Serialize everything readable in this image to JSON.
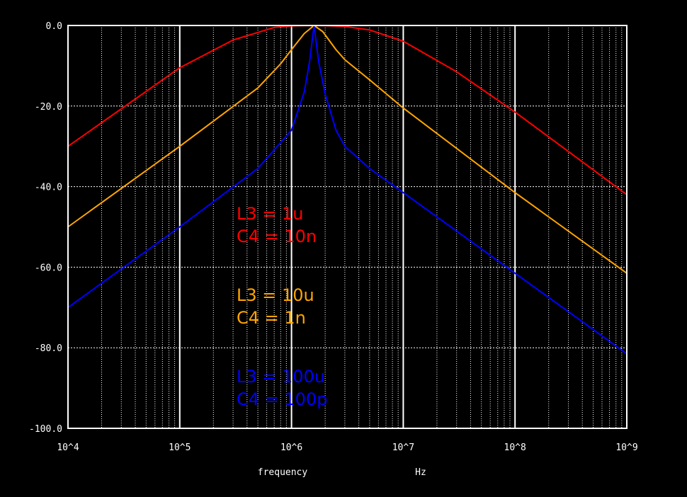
{
  "chart_data": {
    "type": "line",
    "title": "",
    "xlabel": "frequency",
    "xunit": "Hz",
    "ylabel": "",
    "xscale": "log",
    "xlim": [
      10000,
      1000000000
    ],
    "ylim": [
      -100,
      0
    ],
    "grid": true,
    "x_ticks": [
      10000,
      100000,
      1000000,
      10000000,
      100000000,
      1000000000
    ],
    "x_tick_labels": [
      "10^4",
      "10^5",
      "10^6",
      "10^7",
      "10^8",
      "10^9"
    ],
    "y_ticks": [
      0,
      -20,
      -40,
      -60,
      -80,
      -100
    ],
    "y_tick_labels": [
      "0.0",
      "-20.0",
      "-40.0",
      "-60.0",
      "-80.0",
      "-100.0"
    ],
    "series": [
      {
        "color": "#ff0000",
        "x": [
          10000,
          100000,
          300000,
          700000,
          1000000,
          1200000,
          1591000,
          2000000,
          3000000,
          5000000,
          10000000,
          30000000,
          100000000,
          1000000000
        ],
        "y": [
          -30,
          -10.5,
          -3.6,
          -0.5,
          -0.1,
          -0.05,
          0,
          -0.05,
          -0.25,
          -1.1,
          -3.9,
          -11.5,
          -21.5,
          -42
        ]
      },
      {
        "color": "#ffa500",
        "x": [
          10000,
          100000,
          500000,
          800000,
          1000000,
          1300000,
          1591000,
          1900000,
          2500000,
          3000000,
          5000000,
          10000000,
          100000000,
          1000000000
        ],
        "y": [
          -50,
          -30,
          -15.5,
          -9.5,
          -6,
          -2,
          0,
          -1.5,
          -6,
          -8.5,
          -13.5,
          -20.5,
          -41.5,
          -61.5
        ]
      },
      {
        "color": "#0000ff",
        "x": [
          10000,
          100000,
          500000,
          1000000,
          1300000,
          1450000,
          1591000,
          1750000,
          2000000,
          2500000,
          3000000,
          5000000,
          10000000,
          100000000,
          1000000000
        ],
        "y": [
          -70,
          -50,
          -35.5,
          -26,
          -16.5,
          -9,
          0,
          -9,
          -17,
          -26,
          -30,
          -35.5,
          -41.5,
          -61.5,
          -81.5
        ]
      }
    ],
    "annotations": [
      {
        "lines": [
          "L3 = 1u",
          "C4 = 10n"
        ],
        "color": "#ff0000"
      },
      {
        "lines": [
          "L3 = 10u",
          "C4 = 1n"
        ],
        "color": "#ffa500"
      },
      {
        "lines": [
          "L3 = 100u",
          "C4 = 100p"
        ],
        "color": "#0000ff"
      }
    ]
  }
}
